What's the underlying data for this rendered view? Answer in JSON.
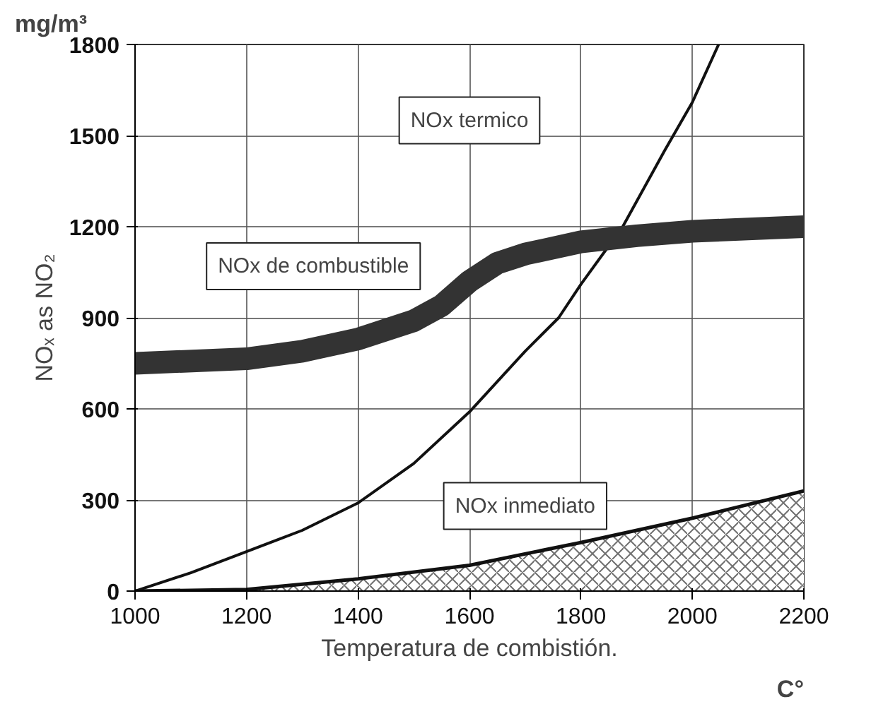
{
  "chart_data": {
    "type": "line",
    "xlabel": "Temperatura de combistión.",
    "ylabel": "NOₓ as NO₂",
    "xlim": [
      1000,
      2200
    ],
    "ylim": [
      0,
      1800
    ],
    "xticks": [
      1000,
      1200,
      1400,
      1600,
      1800,
      2000,
      2200
    ],
    "yticks": [
      0,
      300,
      600,
      900,
      1200,
      1500,
      1800
    ],
    "grid": true,
    "series": [
      {
        "color": "#111111",
        "x": [
          1000,
          1100,
          1200,
          1300,
          1400,
          1500,
          1600,
          1700,
          1760,
          1800,
          1875,
          1950,
          2000,
          2047
        ],
        "values": [
          0,
          60,
          130,
          200,
          290,
          420,
          590,
          790,
          900,
          1010,
          1200,
          1450,
          1610,
          1800
        ]
      },
      {
        "color": "#333333",
        "x": [
          1000,
          1200,
          1300,
          1400,
          1500,
          1550,
          1600,
          1650,
          1700,
          1800,
          1900,
          2000,
          2200
        ],
        "values": [
          750,
          765,
          790,
          830,
          890,
          940,
          1020,
          1080,
          1110,
          1150,
          1170,
          1185,
          1200
        ]
      },
      {
        "type": "area",
        "color": "#111111",
        "x": [
          1000,
          1200,
          1400,
          1600,
          1800,
          2000,
          2200
        ],
        "values": [
          0,
          5,
          40,
          85,
          160,
          240,
          330
        ]
      }
    ],
    "annotations": [
      "NOx termico",
      "NOx de combustible",
      "NOx inmediato",
      "mg/m³",
      "C°"
    ]
  }
}
